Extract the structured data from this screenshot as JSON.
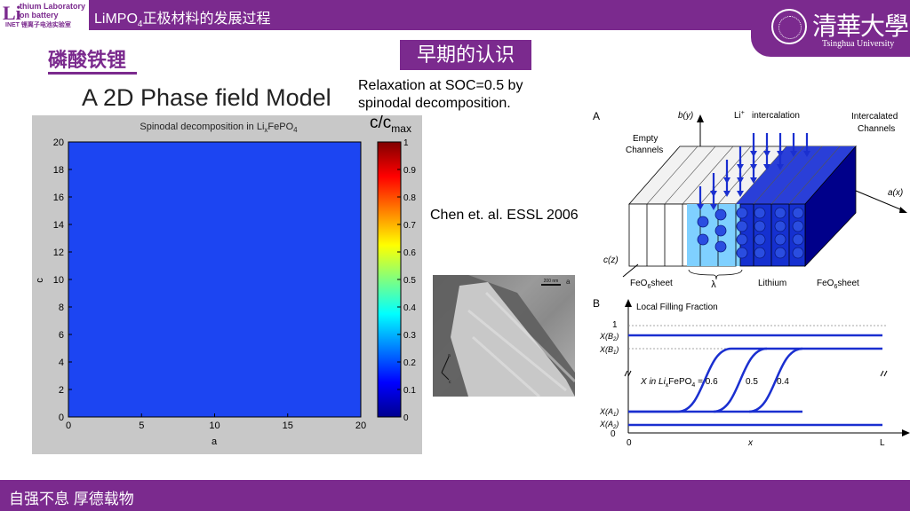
{
  "header": {
    "logo_mark": "Li",
    "logo_line1": "thium Laboratory",
    "logo_line2": "on battery",
    "logo_line3": "INET 锂离子电池实验室",
    "deck_title_pre": "LiMPO",
    "deck_title_sub": "4",
    "deck_title_post": "正极材料的发展过程",
    "university_cn": "清華大學",
    "university_en": "Tsinghua University"
  },
  "section_title": "磷酸铁锂",
  "early_tag": "早期的认识",
  "model_title": "A 2D Phase field Model",
  "relaxation_line1": "Relaxation at SOC=0.5 by",
  "relaxation_line2": "spinodal decomposition.",
  "citation": "Chen et. al. ESSL 2006",
  "sim_plot": {
    "title_pre": "Spinodal decomposition in Li",
    "title_sub1": "x",
    "title_mid": "FePO",
    "title_sub2": "4",
    "xlabel": "a",
    "ylabel": "c",
    "x_ticks": [
      "0",
      "5",
      "10",
      "15",
      "20"
    ],
    "y_ticks": [
      "0",
      "2",
      "4",
      "6",
      "8",
      "10",
      "12",
      "14",
      "16",
      "18",
      "20"
    ],
    "colorbar_label_main": "c/c",
    "colorbar_label_sub": "max",
    "colorbar_ticks": [
      "0",
      "0.1",
      "0.2",
      "0.3",
      "0.4",
      "0.5",
      "0.6",
      "0.7",
      "0.8",
      "0.9",
      "1"
    ],
    "field_color": "#1c45f2"
  },
  "tem_image": {
    "scale_label": "200 nm",
    "panel_letter": "a",
    "axis_a": "a",
    "axis_c": "c"
  },
  "diagram": {
    "panel_A": "A",
    "panel_B": "B",
    "by_label": "b(y)",
    "li_label": "Li",
    "li_sup": "+",
    "intercalation": "intercalation",
    "intercalated_1": "Intercalated",
    "intercalated_2": "Channels",
    "empty_1": "Empty",
    "empty_2": "Channels",
    "ax_label": "a(x)",
    "cz_label": "c(z)",
    "feo6_left": "FeO",
    "feo6_right": "FeO",
    "feo6_sub": "6",
    "sheet": "sheet",
    "lambda": "λ",
    "lithium": "Lithium",
    "local_filling": "Local Filling Fraction",
    "y_one": "1",
    "y_zero": "0",
    "xb2": "X(B",
    "xb2_sub": "2",
    "xb1": "X(B",
    "xb1_sub": "1",
    "xa1": "X(A",
    "xa1_sub": "1",
    "xa2": "X(A",
    "xa2_sub": "2",
    "x_in_pre": "X in Li",
    "x_in_sub1": "x",
    "x_in_mid": "FePO",
    "x_in_sub2": "4",
    "x_in_post": " = 0.6",
    "frac_05": "0.5",
    "frac_04": "0.4",
    "x0": "0",
    "xmid": "x",
    "xL": "L",
    "close_paren": ")",
    "diagram_color": "#1a2fd0"
  },
  "footer": {
    "motto": "自强不息 厚德载物"
  },
  "colors": {
    "brand_purple": "#7b2a8e"
  }
}
